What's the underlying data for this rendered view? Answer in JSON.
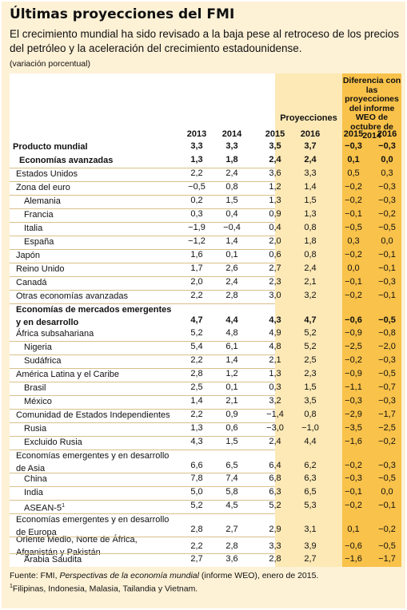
{
  "title": "Últimas proyecciones del FMI",
  "subtitle": "El crecimiento mundial ha sido revisado a la baja pese al retroceso de los precios del petróleo y la aceleración del crecimiento estadounidense.",
  "unit_note": "(variación porcentual)",
  "header": {
    "proyecciones": "Proyecciones",
    "diferencia": "Diferencia con las proyecciones del informe WEO de octubre de 2014",
    "years": [
      "2013",
      "2014",
      "2015",
      "2016",
      "2015",
      "2016"
    ]
  },
  "rows": [
    {
      "label": "Producto mundial",
      "vals": [
        "3,3",
        "3,3",
        "3,5",
        "3,7",
        "−0,3",
        "−0,3"
      ]
    },
    {
      "label": "Economías avanzadas",
      "vals": [
        "1,3",
        "1,8",
        "2,4",
        "2,4",
        "0,1",
        "0,0"
      ]
    },
    {
      "label": "Estados Unidos",
      "vals": [
        "2,2",
        "2,4",
        "3,6",
        "3,3",
        "0,5",
        "0,3"
      ]
    },
    {
      "label": "Zona del euro",
      "vals": [
        "−0,5",
        "0,8",
        "1,2",
        "1,4",
        "−0,2",
        "−0,3"
      ]
    },
    {
      "label": "Alemania",
      "vals": [
        "0,2",
        "1,5",
        "1,3",
        "1,5",
        "−0,2",
        "−0,3"
      ]
    },
    {
      "label": "Francia",
      "vals": [
        "0,3",
        "0,4",
        "0,9",
        "1,3",
        "−0,1",
        "−0,2"
      ]
    },
    {
      "label": "Italia",
      "vals": [
        "−1,9",
        "−0,4",
        "0,4",
        "0,8",
        "−0,5",
        "−0,5"
      ]
    },
    {
      "label": "España",
      "vals": [
        "−1,2",
        "1,4",
        "2,0",
        "1,8",
        "0,3",
        "0,0"
      ]
    },
    {
      "label": "Japón",
      "vals": [
        "1,6",
        "0,1",
        "0,6",
        "0,8",
        "−0,2",
        "−0,1"
      ]
    },
    {
      "label": "Reino Unido",
      "vals": [
        "1,7",
        "2,6",
        "2,7",
        "2,4",
        "0,0",
        "−0,1"
      ]
    },
    {
      "label": "Canadá",
      "vals": [
        "2,0",
        "2,4",
        "2,3",
        "2,1",
        "−0,1",
        "−0,3"
      ]
    },
    {
      "label": "Otras economías avanzadas",
      "vals": [
        "2,2",
        "2,8",
        "3,0",
        "3,2",
        "−0,2",
        "−0,1"
      ]
    },
    {
      "label": "Economías de mercados emergentes",
      "label2": "y en desarrollo",
      "vals": [
        "4,7",
        "4,4",
        "4,3",
        "4,7",
        "−0,6",
        "−0,5"
      ]
    },
    {
      "label": "África subsahariana",
      "vals": [
        "5,2",
        "4,8",
        "4,9",
        "5,2",
        "−0,9",
        "−0,8"
      ]
    },
    {
      "label": "Nigeria",
      "vals": [
        "5,4",
        "6,1",
        "4,8",
        "5,2",
        "−2,5",
        "−2,0"
      ]
    },
    {
      "label": "Sudáfrica",
      "vals": [
        "2,2",
        "1,4",
        "2,1",
        "2,5",
        "−0,2",
        "−0,3"
      ]
    },
    {
      "label": "América Latina y el Caribe",
      "vals": [
        "2,8",
        "1,2",
        "1,3",
        "2,3",
        "−0,9",
        "−0,5"
      ]
    },
    {
      "label": "Brasil",
      "vals": [
        "2,5",
        "0,1",
        "0,3",
        "1,5",
        "−1,1",
        "−0,7"
      ]
    },
    {
      "label": "México",
      "vals": [
        "1,4",
        "2,1",
        "3,2",
        "3,5",
        "−0,3",
        "−0,3"
      ]
    },
    {
      "label": "Comunidad de Estados Independientes",
      "vals": [
        "2,2",
        "0,9",
        "−1,4",
        "0,8",
        "−2,9",
        "−1,7"
      ]
    },
    {
      "label": "Rusia",
      "vals": [
        "1,3",
        "0,6",
        "−3,0",
        "−1,0",
        "−3,5",
        "−2,5"
      ]
    },
    {
      "label": "Excluido Rusia",
      "vals": [
        "4,3",
        "1,5",
        "2,4",
        "4,4",
        "−1,6",
        "−0,2"
      ]
    },
    {
      "label": "Economías emergentes y en desarrollo",
      "label2": "de Asia",
      "vals": [
        "6,6",
        "6,5",
        "6,4",
        "6,2",
        "−0,2",
        "−0,3"
      ]
    },
    {
      "label": "China",
      "vals": [
        "7,8",
        "7,4",
        "6,8",
        "6,3",
        "−0,3",
        "−0,5"
      ]
    },
    {
      "label": "India",
      "vals": [
        "5,0",
        "5,8",
        "6,3",
        "6,5",
        "−0,1",
        "0,0"
      ]
    },
    {
      "label": "ASEAN-5",
      "sup": "1",
      "vals": [
        "5,2",
        "4,5",
        "5,2",
        "5,3",
        "−0,2",
        "−0,1"
      ]
    },
    {
      "label": "Economías emergentes y en desarrollo",
      "label2": "de Europa",
      "vals": [
        "2,8",
        "2,7",
        "2,9",
        "3,1",
        "0,1",
        "−0,2"
      ]
    },
    {
      "label": "Oriente Medio, Norte de África,",
      "label2": "Afganistán y Pakistán",
      "vals": [
        "2,2",
        "2,8",
        "3,3",
        "3,9",
        "−0,6",
        "−0,5"
      ]
    },
    {
      "label": "Arabia Saudita",
      "vals": [
        "2,7",
        "3,6",
        "2,8",
        "2,7",
        "−1,6",
        "−1,7"
      ]
    }
  ],
  "footer": {
    "source_prefix": "Fuente: FMI, ",
    "source_italic": "Perspectivas de la economía mundial",
    "source_suffix": " (informe WEO), enero de 2015.",
    "note_mark": "1",
    "note": "Filipinas, Indonesia, Malasia, Tailandia y Vietnam."
  },
  "colors": {
    "background": "#fdf1d6",
    "proyecciones_band": "#fde9b6",
    "diferencia_band": "#f9c24a"
  }
}
